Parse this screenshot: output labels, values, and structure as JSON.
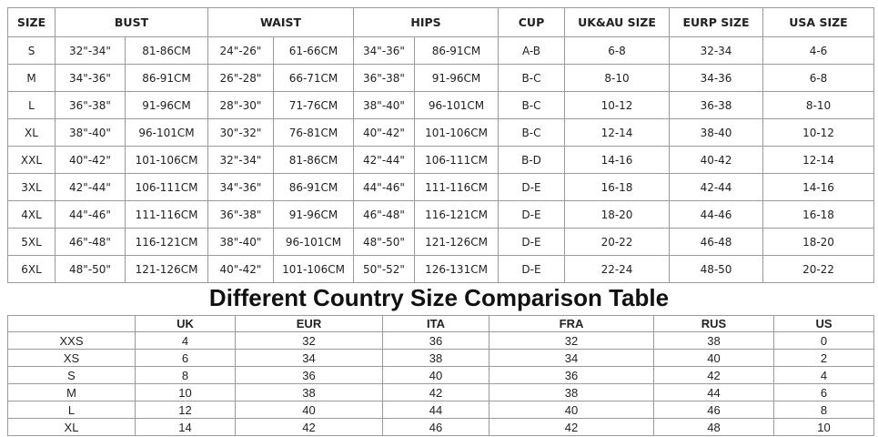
{
  "size_table": {
    "headers": [
      "SIZE",
      "BUST",
      "WAIST",
      "HIPS",
      "CUP",
      "UK&AU SIZE",
      "EURP SIZE",
      "USA SIZE"
    ],
    "rows": [
      [
        "S",
        "32\"-34\"",
        "81-86CM",
        "24\"-26\"",
        "61-66CM",
        "34\"-36\"",
        "86-91CM",
        "A-B",
        "6-8",
        "32-34",
        "4-6"
      ],
      [
        "M",
        "34\"-36\"",
        "86-91CM",
        "26\"-28\"",
        "66-71CM",
        "36\"-38\"",
        "91-96CM",
        "B-C",
        "8-10",
        "34-36",
        "6-8"
      ],
      [
        "L",
        "36\"-38\"",
        "91-96CM",
        "28\"-30\"",
        "71-76CM",
        "38\"-40\"",
        "96-101CM",
        "B-C",
        "10-12",
        "36-38",
        "8-10"
      ],
      [
        "XL",
        "38\"-40\"",
        "96-101CM",
        "30\"-32\"",
        "76-81CM",
        "40\"-42\"",
        "101-106CM",
        "B-C",
        "12-14",
        "38-40",
        "10-12"
      ],
      [
        "XXL",
        "40\"-42\"",
        "101-106CM",
        "32\"-34\"",
        "81-86CM",
        "42\"-44\"",
        "106-111CM",
        "B-D",
        "14-16",
        "40-42",
        "12-14"
      ],
      [
        "3XL",
        "42\"-44\"",
        "106-111CM",
        "34\"-36\"",
        "86-91CM",
        "44\"-46\"",
        "111-116CM",
        "D-E",
        "16-18",
        "42-44",
        "14-16"
      ],
      [
        "4XL",
        "44\"-46\"",
        "111-116CM",
        "36\"-38\"",
        "91-96CM",
        "46\"-48\"",
        "116-121CM",
        "D-E",
        "18-20",
        "44-46",
        "16-18"
      ],
      [
        "5XL",
        "46\"-48\"",
        "116-121CM",
        "38\"-40\"",
        "96-101CM",
        "48\"-50\"",
        "121-126CM",
        "D-E",
        "20-22",
        "46-48",
        "18-20"
      ],
      [
        "6XL",
        "48\"-50\"",
        "121-126CM",
        "40\"-42\"",
        "101-106CM",
        "50\"-52\"",
        "126-131CM",
        "D-E",
        "22-24",
        "48-50",
        "20-22"
      ]
    ]
  },
  "comparison_title": "Different Country Size Comparison Table",
  "comparison_table": {
    "headers": [
      "UK",
      "EUR",
      "ITA",
      "FRA",
      "RUS",
      "US"
    ],
    "rows": [
      [
        "XXS",
        4,
        32,
        36,
        32,
        38,
        0
      ],
      [
        "XS",
        6,
        34,
        38,
        34,
        40,
        2
      ],
      [
        "S",
        8,
        36,
        40,
        36,
        42,
        4
      ],
      [
        "M",
        10,
        38,
        42,
        38,
        44,
        6
      ],
      [
        "L",
        12,
        40,
        44,
        40,
        46,
        8
      ],
      [
        "XL",
        14,
        42,
        46,
        42,
        48,
        10
      ]
    ]
  }
}
